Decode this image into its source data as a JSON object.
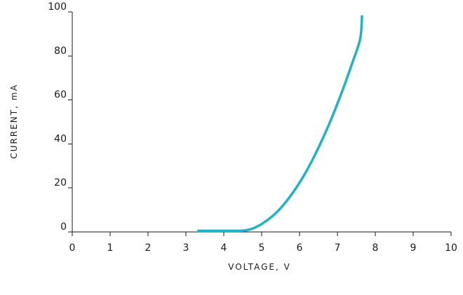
{
  "chart_data": {
    "type": "line",
    "title": "",
    "xlabel": "VOLTAGE, V",
    "ylabel": "CURRENT,   mA",
    "xlim": [
      0,
      10
    ],
    "ylim": [
      0,
      100
    ],
    "xticks": [
      "0",
      "1",
      "2",
      "3",
      "4",
      "5",
      "6",
      "7",
      "8",
      "9",
      "10"
    ],
    "yticks": [
      "0",
      "20",
      "40",
      "60",
      "80",
      "100"
    ],
    "grid": false,
    "series": [
      {
        "color": "#1fb2c8",
        "x": [
          3.3,
          3.6,
          4.0,
          4.3,
          4.5,
          4.6,
          4.7,
          4.8,
          4.9,
          5.0,
          5.2,
          5.4,
          5.6,
          5.8,
          6.0,
          6.2,
          6.4,
          6.6,
          6.8,
          7.0,
          7.2,
          7.4,
          7.6,
          7.65
        ],
        "y": [
          0.5,
          0.5,
          0.5,
          0.5,
          0.6,
          0.8,
          1.2,
          1.8,
          2.6,
          3.6,
          6.0,
          9.0,
          12.8,
          17.3,
          22.4,
          28.2,
          34.8,
          42.0,
          49.8,
          58.3,
          67.4,
          77.2,
          87.7,
          98.5
        ]
      }
    ]
  }
}
